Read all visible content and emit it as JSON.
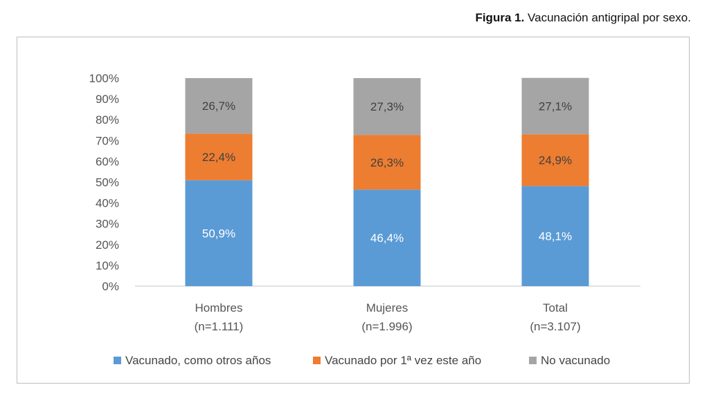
{
  "caption": {
    "figure_label": "Figura 1.",
    "text": "Vacunación antigripal por sexo."
  },
  "chart_data": {
    "type": "bar",
    "stacked": true,
    "title": "Vacunación antigripal por sexo.",
    "categories": [
      "Hombres",
      "Mujeres",
      "Total"
    ],
    "category_sublabels": [
      "(n=1.111)",
      "(n=1.996)",
      "(n=3.107)"
    ],
    "series": [
      {
        "name": "Vacunado, como otros años",
        "values": [
          50.9,
          46.4,
          48.1
        ],
        "labels": [
          "50,9%",
          "46,4%",
          "48,1%"
        ],
        "color": "#5b9bd5",
        "label_color": "#ffffff"
      },
      {
        "name": "Vacunado por 1ª vez este año",
        "values": [
          22.4,
          26.3,
          24.9
        ],
        "labels": [
          "22,4%",
          "26,3%",
          "24,9%"
        ],
        "color": "#ed7d31",
        "label_color": "#404040"
      },
      {
        "name": "No vacunado",
        "values": [
          26.7,
          27.3,
          27.1
        ],
        "labels": [
          "26,7%",
          "27,3%",
          "27,1%"
        ],
        "color": "#a5a5a5",
        "label_color": "#404040"
      }
    ],
    "ylim": [
      0,
      100
    ],
    "yticks": [
      "0%",
      "10%",
      "20%",
      "30%",
      "40%",
      "50%",
      "60%",
      "70%",
      "80%",
      "90%",
      "100%"
    ],
    "xlabel": "",
    "ylabel": "",
    "legend_position": "bottom",
    "grid": false
  }
}
